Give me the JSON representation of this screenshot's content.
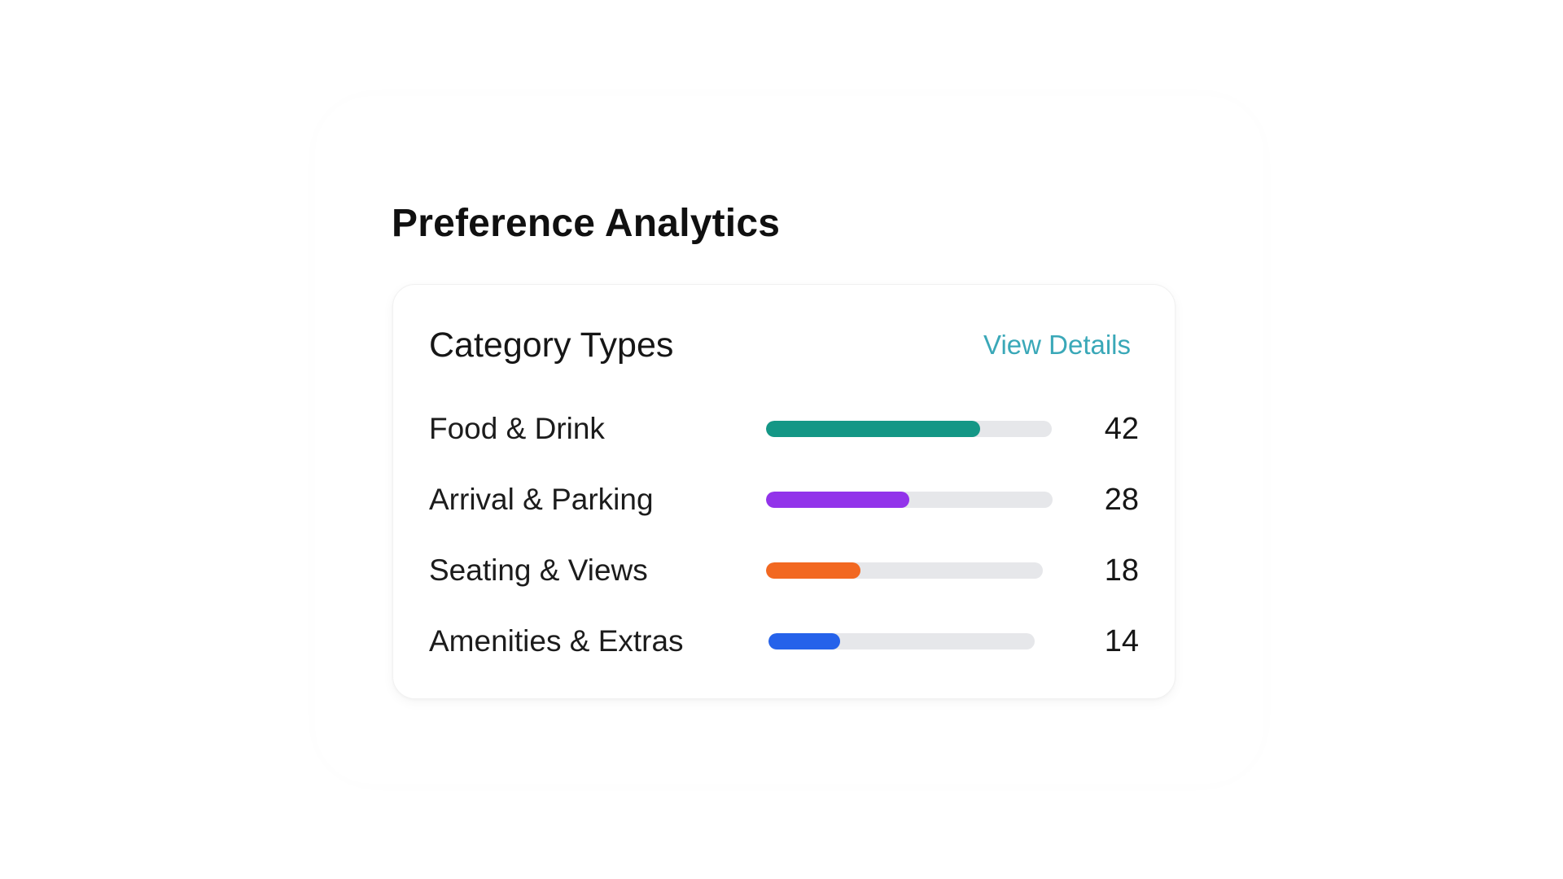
{
  "page": {
    "title": "Preference Analytics"
  },
  "card": {
    "title": "Category Types",
    "link_label": "View Details",
    "link_color": "#3aa8b8"
  },
  "categories": [
    {
      "label": "Food & Drink",
      "value": "42",
      "fill_fraction": 0.75,
      "color": "#149786"
    },
    {
      "label": "Arrival & Parking",
      "value": "28",
      "fill_fraction": 0.5,
      "color": "#9233ea"
    },
    {
      "label": "Seating & Views",
      "value": "18",
      "fill_fraction": 0.34,
      "color": "#f26821"
    },
    {
      "label": "Amenities & Extras",
      "value": "14",
      "fill_fraction": 0.27,
      "color": "#2562ea"
    }
  ]
}
